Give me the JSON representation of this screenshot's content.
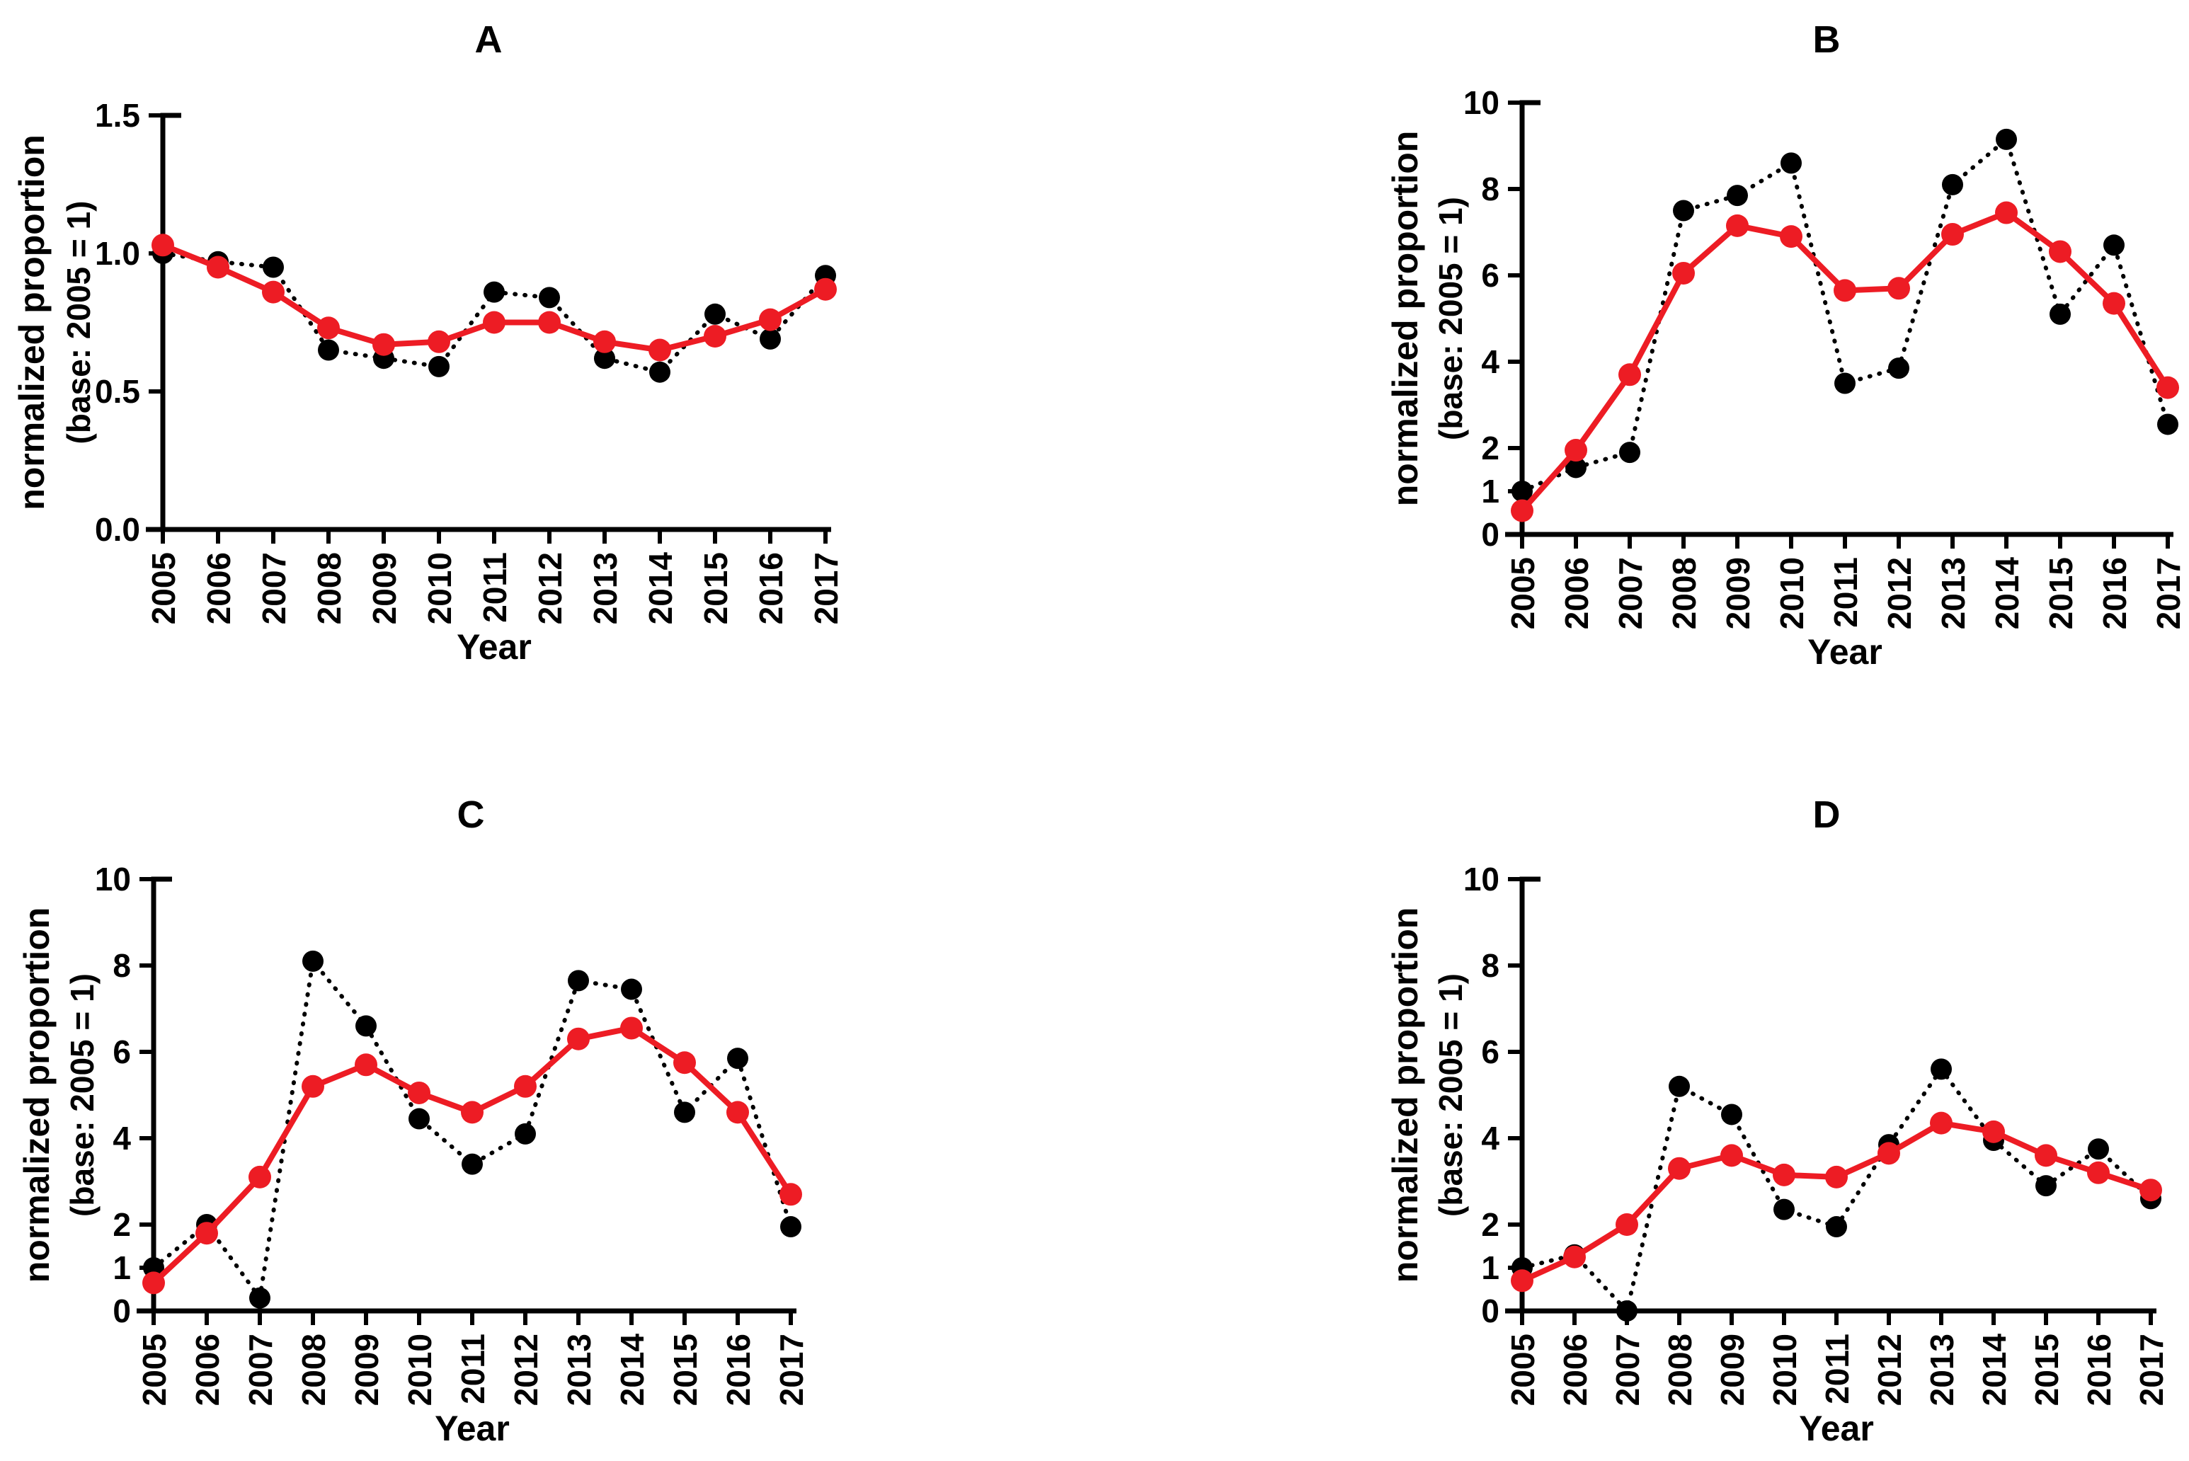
{
  "figure": {
    "background": "#ffffff",
    "axis_color": "#000000",
    "xlabel": "Year",
    "ylabel_line1": "normalized proportion",
    "ylabel_line2": "(base: 2005 = 1)",
    "years": [
      2005,
      2006,
      2007,
      2008,
      2009,
      2010,
      2011,
      2012,
      2013,
      2014,
      2015,
      2016,
      2017
    ]
  },
  "chart_data": [
    {
      "id": "A",
      "type": "line",
      "title": "A",
      "xlabel": "Year",
      "ylabel": "normalized proportion",
      "ylabel2": "(base: 2005 = 1)",
      "x": [
        2005,
        2006,
        2007,
        2008,
        2009,
        2010,
        2011,
        2012,
        2013,
        2014,
        2015,
        2016,
        2017
      ],
      "ylim": [
        0,
        1.5
      ],
      "yticks": [
        0,
        0.5,
        1.0,
        1.5
      ],
      "ytick_labels": [
        "0.0",
        "0.5",
        "1.0",
        "1.5"
      ],
      "grid": false,
      "legend": "none",
      "series": [
        {
          "name": "black dotted",
          "color": "#000000",
          "line_style": "dotted",
          "marker": "circle",
          "values": [
            1.0,
            0.97,
            0.95,
            0.65,
            0.62,
            0.59,
            0.86,
            0.84,
            0.62,
            0.57,
            0.78,
            0.69,
            0.92
          ]
        },
        {
          "name": "red solid",
          "color": "#ED1C24",
          "line_style": "solid",
          "marker": "circle",
          "values": [
            1.03,
            0.95,
            0.86,
            0.73,
            0.67,
            0.68,
            0.75,
            0.75,
            0.68,
            0.65,
            0.7,
            0.76,
            0.87
          ]
        }
      ]
    },
    {
      "id": "B",
      "type": "line",
      "title": "B",
      "xlabel": "Year",
      "ylabel": "normalized proportion",
      "ylabel2": "(base: 2005 = 1)",
      "x": [
        2005,
        2006,
        2007,
        2008,
        2009,
        2010,
        2011,
        2012,
        2013,
        2014,
        2015,
        2016,
        2017
      ],
      "ylim": [
        0,
        10
      ],
      "yticks": [
        0,
        1,
        2,
        4,
        6,
        8,
        10
      ],
      "ytick_labels": [
        "0",
        "1",
        "2",
        "4",
        "6",
        "8",
        "10"
      ],
      "grid": false,
      "legend": "none",
      "series": [
        {
          "name": "black dotted",
          "color": "#000000",
          "line_style": "dotted",
          "marker": "circle",
          "values": [
            1.0,
            1.55,
            1.9,
            7.5,
            7.85,
            8.6,
            3.5,
            3.85,
            8.1,
            9.15,
            5.1,
            6.7,
            2.55
          ]
        },
        {
          "name": "red solid",
          "color": "#ED1C24",
          "line_style": "solid",
          "marker": "circle",
          "values": [
            0.55,
            1.95,
            3.7,
            6.05,
            7.15,
            6.9,
            5.65,
            5.7,
            6.95,
            7.45,
            6.55,
            5.35,
            3.4
          ]
        }
      ]
    },
    {
      "id": "C",
      "type": "line",
      "title": "C",
      "xlabel": "Year",
      "ylabel": "normalized proportion",
      "ylabel2": "(base: 2005 = 1)",
      "x": [
        2005,
        2006,
        2007,
        2008,
        2009,
        2010,
        2011,
        2012,
        2013,
        2014,
        2015,
        2016,
        2017
      ],
      "ylim": [
        0,
        10
      ],
      "yticks": [
        0,
        1,
        2,
        4,
        6,
        8,
        10
      ],
      "ytick_labels": [
        "0",
        "1",
        "2",
        "4",
        "6",
        "8",
        "10"
      ],
      "grid": false,
      "legend": "none",
      "series": [
        {
          "name": "black dotted",
          "color": "#000000",
          "line_style": "dotted",
          "marker": "circle",
          "values": [
            1.0,
            2.0,
            0.3,
            8.1,
            6.6,
            4.45,
            3.4,
            4.1,
            7.65,
            7.45,
            4.6,
            5.85,
            1.95
          ]
        },
        {
          "name": "red solid",
          "color": "#ED1C24",
          "line_style": "solid",
          "marker": "circle",
          "values": [
            0.65,
            1.8,
            3.1,
            5.2,
            5.7,
            5.05,
            4.6,
            5.2,
            6.3,
            6.55,
            5.75,
            4.6,
            2.7
          ]
        }
      ]
    },
    {
      "id": "D",
      "type": "line",
      "title": "D",
      "xlabel": "Year",
      "ylabel": "normalized proportion",
      "ylabel2": "(base: 2005 = 1)",
      "x": [
        2005,
        2006,
        2007,
        2008,
        2009,
        2010,
        2011,
        2012,
        2013,
        2014,
        2015,
        2016,
        2017
      ],
      "ylim": [
        0,
        10
      ],
      "yticks": [
        0,
        1,
        2,
        4,
        6,
        8,
        10
      ],
      "ytick_labels": [
        "0",
        "1",
        "2",
        "4",
        "6",
        "8",
        "10"
      ],
      "grid": false,
      "legend": "none",
      "series": [
        {
          "name": "black dotted",
          "color": "#000000",
          "line_style": "dotted",
          "marker": "circle",
          "values": [
            1.0,
            1.3,
            0.0,
            5.2,
            4.55,
            2.35,
            1.95,
            3.85,
            5.6,
            3.95,
            2.9,
            3.75,
            2.6
          ]
        },
        {
          "name": "red solid",
          "color": "#ED1C24",
          "line_style": "solid",
          "marker": "circle",
          "values": [
            0.7,
            1.25,
            2.0,
            3.3,
            3.6,
            3.15,
            3.1,
            3.65,
            4.35,
            4.15,
            3.6,
            3.2,
            2.8
          ]
        }
      ]
    }
  ]
}
